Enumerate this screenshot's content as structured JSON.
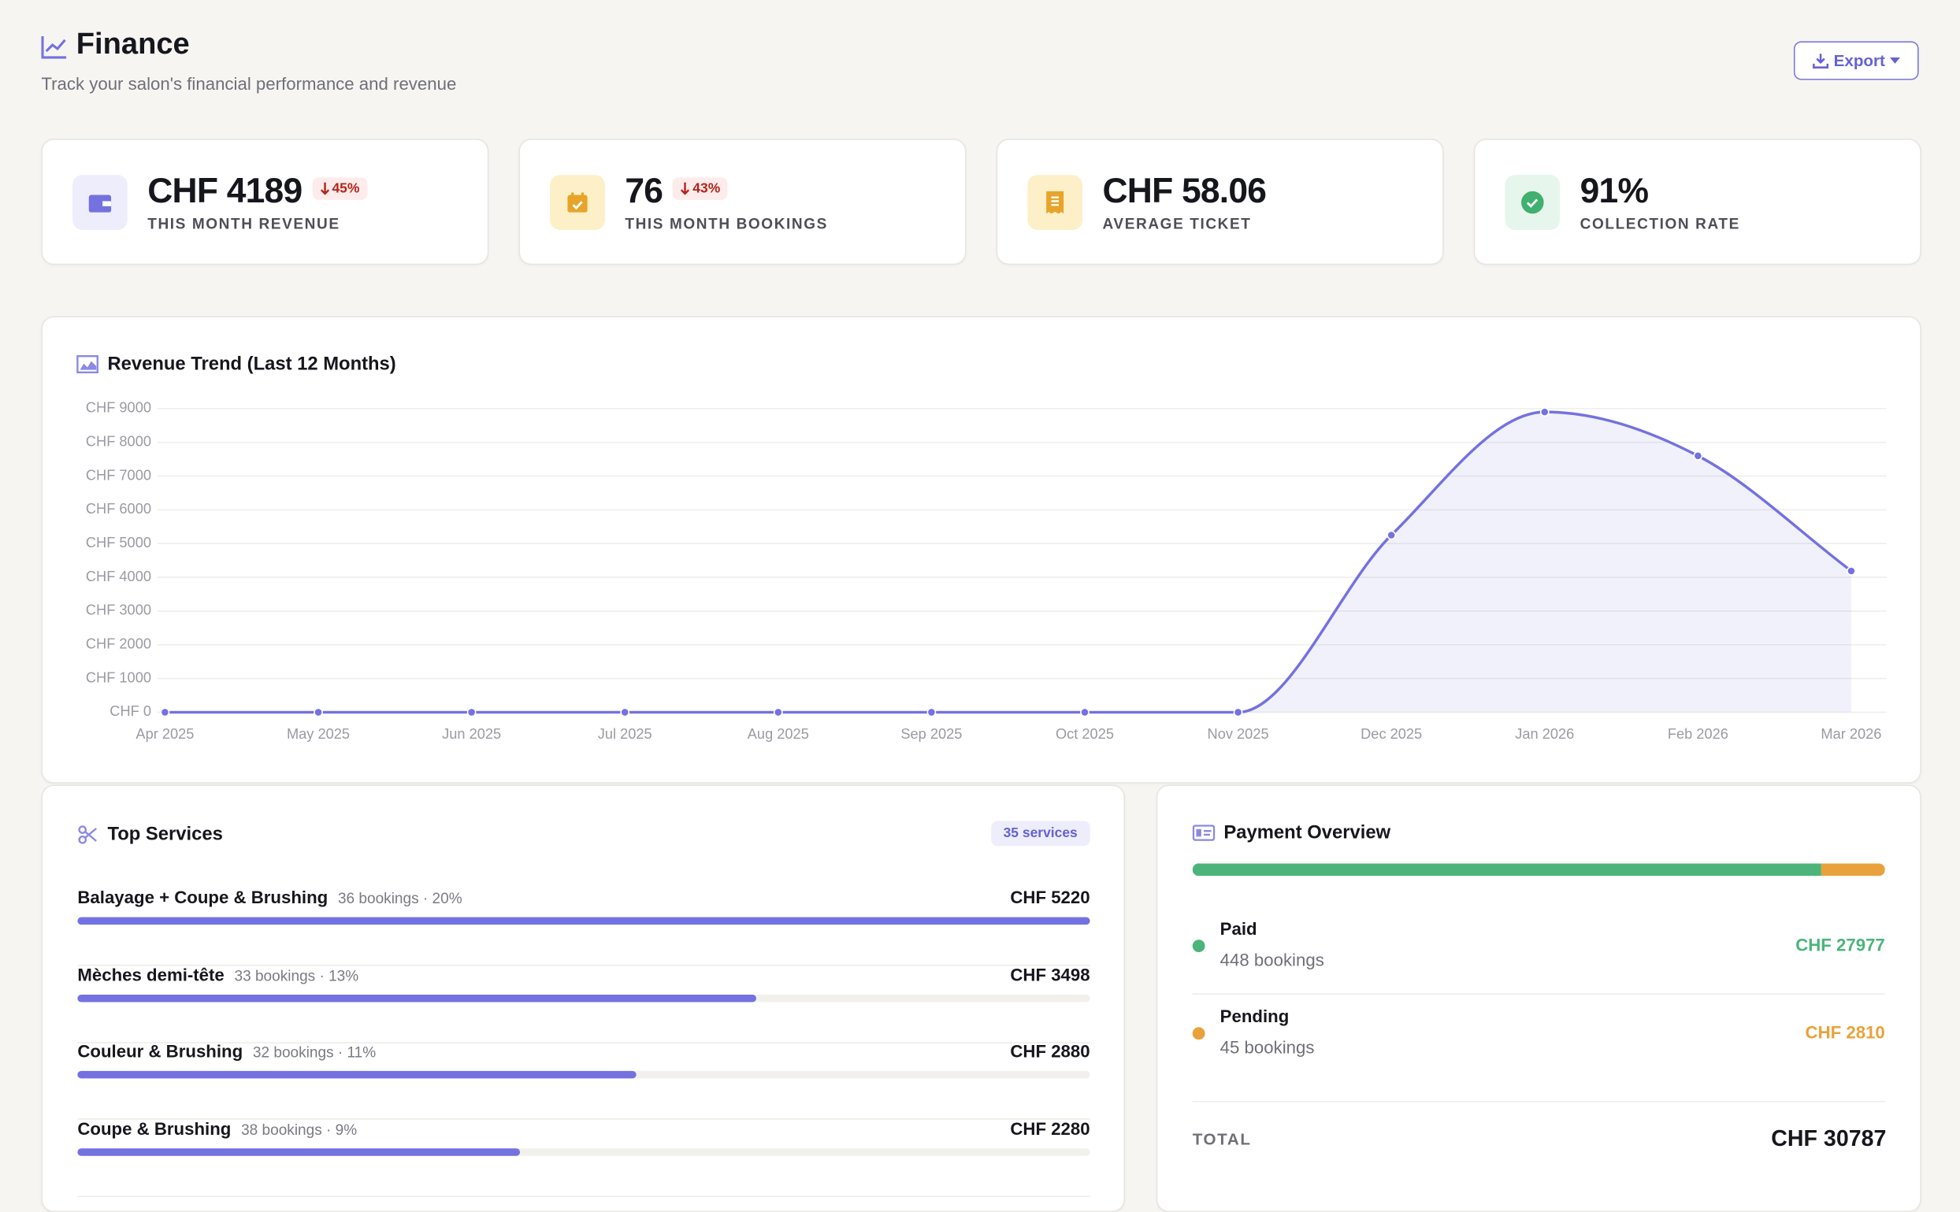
{
  "header": {
    "title": "Finance",
    "subtitle": "Track your salon's financial performance and revenue",
    "export": "Export"
  },
  "stats": [
    {
      "value": "CHF 4189",
      "change": "45%",
      "label": "THIS MONTH REVENUE"
    },
    {
      "value": "76",
      "change": "43%",
      "label": "THIS MONTH BOOKINGS"
    },
    {
      "value": "CHF 58.06",
      "label": "AVERAGE TICKET"
    },
    {
      "value": "91%",
      "label": "COLLECTION RATE"
    }
  ],
  "chart_data": {
    "type": "area",
    "title": "Revenue Trend (Last 12 Months)",
    "categories": [
      "Apr 2025",
      "May 2025",
      "Jun 2025",
      "Jul 2025",
      "Aug 2025",
      "Sep 2025",
      "Oct 2025",
      "Nov 2025",
      "Dec 2025",
      "Jan 2026",
      "Feb 2026",
      "Mar 2026"
    ],
    "series": [
      {
        "name": "Revenue",
        "color": "#7472e0",
        "values": [
          0,
          0,
          0,
          0,
          0,
          0,
          0,
          0,
          5250,
          8900,
          7600,
          4189
        ]
      }
    ],
    "ylim": [
      0,
      9000
    ],
    "yticks": [
      {
        "value": 0,
        "label": "CHF 0"
      },
      {
        "value": 1000,
        "label": "CHF 1000"
      },
      {
        "value": 2000,
        "label": "CHF 2000"
      },
      {
        "value": 3000,
        "label": "CHF 3000"
      },
      {
        "value": 4000,
        "label": "CHF 4000"
      },
      {
        "value": 5000,
        "label": "CHF 5000"
      },
      {
        "value": 6000,
        "label": "CHF 6000"
      },
      {
        "value": 7000,
        "label": "CHF 7000"
      },
      {
        "value": 8000,
        "label": "CHF 8000"
      },
      {
        "value": 9000,
        "label": "CHF 9000"
      }
    ],
    "grid": true
  },
  "top_services": {
    "title": "Top Services",
    "badge": "35 services",
    "items": [
      {
        "name": "Balayage + Coupe & Brushing",
        "meta": "36 bookings · 20%",
        "value": 5220,
        "value_label": "CHF 5220"
      },
      {
        "name": "Mèches demi-tête",
        "meta": "33 bookings · 13%",
        "value": 3498,
        "value_label": "CHF 3498"
      },
      {
        "name": "Couleur & Brushing",
        "meta": "32 bookings · 11%",
        "value": 2880,
        "value_label": "CHF 2880"
      },
      {
        "name": "Coupe & Brushing",
        "meta": "38 bookings · 9%",
        "value": 2280,
        "value_label": "CHF 2280"
      }
    ]
  },
  "payment": {
    "title": "Payment Overview",
    "items": [
      {
        "name": "Paid",
        "bookings": "448 bookings",
        "value": 27977,
        "value_label": "CHF 27977",
        "color": "#4cb47a"
      },
      {
        "name": "Pending",
        "bookings": "45 bookings",
        "value": 2810,
        "value_label": "CHF 2810",
        "color": "#e9a23b"
      }
    ],
    "total_label": "TOTAL",
    "total_value": "CHF 30787"
  }
}
